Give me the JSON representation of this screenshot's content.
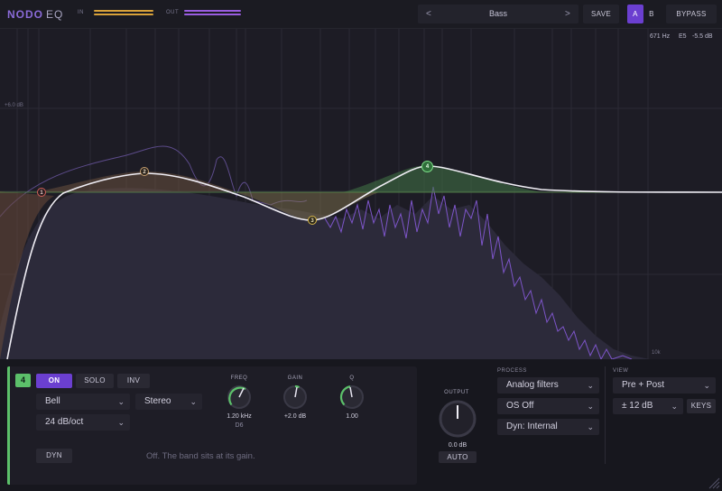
{
  "header": {
    "brand": "NODO",
    "product": "EQ",
    "in_label": "IN",
    "out_label": "OUT",
    "preset_prev": "<",
    "preset_name": "Bass",
    "preset_next": ">",
    "save_label": "SAVE",
    "a_label": "A",
    "b_label": "B",
    "bypass_label": "BYPASS"
  },
  "graph": {
    "hover_freq": "671 Hz",
    "hover_note": "E5",
    "hover_gain": "-5.5 dB",
    "db_top_label": "+6.0 dB",
    "freq_label": "10k",
    "nodes": [
      {
        "id": "1",
        "color": "#d0605a"
      },
      {
        "id": "2",
        "color": "#c8a070"
      },
      {
        "id": "3",
        "color": "#d8b84a"
      },
      {
        "id": "4",
        "color": "#5cc06a"
      }
    ]
  },
  "band": {
    "number": "4",
    "on_label": "ON",
    "solo_label": "SOLO",
    "inv_label": "INV",
    "type": "Bell",
    "stereo": "Stereo",
    "slope": "24 dB/oct",
    "dyn_label": "DYN",
    "freq_label": "FREQ",
    "freq_value": "1.20 kHz",
    "freq_note": "D6",
    "gain_label": "GAIN",
    "gain_value": "+2.0 dB",
    "q_label": "Q",
    "q_value": "1.00",
    "note": "Off. The band sits at its gain."
  },
  "output": {
    "label": "OUTPUT",
    "value": "0.0 dB",
    "auto_label": "AUTO"
  },
  "process": {
    "label": "PROCESS",
    "filters": "Analog filters",
    "os": "OS Off",
    "dyn": "Dyn: Internal"
  },
  "view": {
    "label": "VIEW",
    "mode": "Pre + Post",
    "range": "± 12 dB",
    "keys_label": "KEYS"
  },
  "colors": {
    "accent": "#6b3fd0",
    "band4": "#5cc06a",
    "in_meter": "#d9a23a",
    "out_meter": "#9a5de0"
  }
}
